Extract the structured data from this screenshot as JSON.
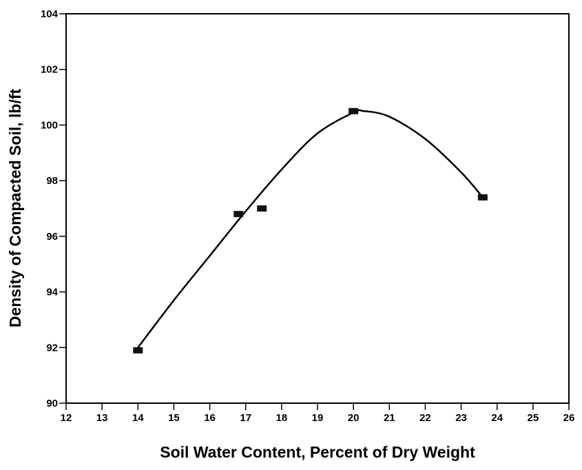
{
  "chart_data": {
    "type": "scatter",
    "xlabel": "Soil Water Content, Percent of Dry Weight",
    "ylabel": "Density of Compacted Soil, lb/ft",
    "x": [
      14,
      16.8,
      17.45,
      20,
      23.6
    ],
    "values": [
      91.9,
      96.8,
      97.0,
      100.5,
      97.4
    ],
    "color": "#111111",
    "fit_curve": {
      "x": [
        14,
        15,
        16,
        17,
        18,
        19,
        20,
        20.3,
        21,
        22,
        23,
        23.6
      ],
      "values": [
        92.0,
        93.7,
        95.3,
        96.9,
        98.4,
        99.7,
        100.45,
        100.5,
        100.3,
        99.5,
        98.3,
        97.4
      ],
      "color": "#000000"
    },
    "xlim": [
      12,
      26
    ],
    "ylim": [
      90,
      104
    ],
    "xticks": [
      12,
      13,
      14,
      15,
      16,
      17,
      18,
      19,
      20,
      21,
      22,
      23,
      24,
      25,
      26
    ],
    "yticks": [
      90,
      92,
      94,
      96,
      98,
      100,
      102,
      104
    ]
  }
}
